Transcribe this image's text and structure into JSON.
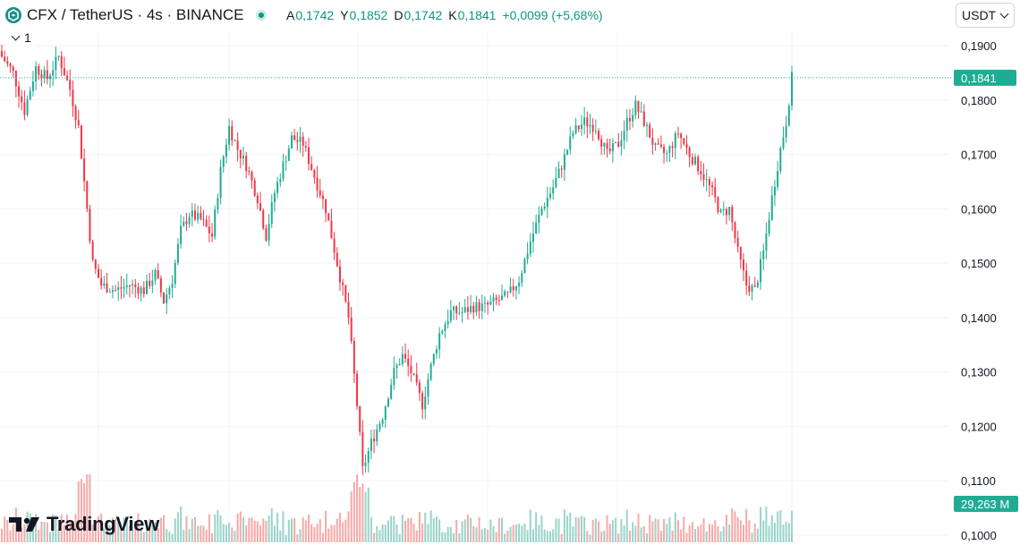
{
  "header": {
    "symbol": "CFX / TetherUS · 4s · BINANCE",
    "symbol_icon": "cfx-logo-icon",
    "ohlc": [
      {
        "key": "A",
        "value": "0,1742"
      },
      {
        "key": "Y",
        "value": "0,1852"
      },
      {
        "key": "D",
        "value": "0,1742"
      },
      {
        "key": "K",
        "value": "0,1841"
      }
    ],
    "change": "+0,0099 (+5,68%)",
    "collapse_count": "1",
    "currency": "USDT"
  },
  "brand": {
    "name": "TradingView",
    "icon": "tradingview-logo-icon"
  },
  "colors": {
    "up": "#22ab94",
    "down": "#f23645",
    "up_vol": "#9ad4c9",
    "down_vol": "#f7a9a7",
    "grid": "#f0f3fa"
  },
  "chart_data": {
    "type": "candlestick",
    "y_axis": {
      "range": [
        0.1,
        0.195
      ],
      "ticks": [
        "0,1900",
        "0,1800",
        "0,1700",
        "0,1600",
        "0,1500",
        "0,1400",
        "0,1300",
        "0,1200",
        "0,1100",
        "0,1000"
      ],
      "tick_values": [
        0.19,
        0.18,
        0.17,
        0.16,
        0.15,
        0.14,
        0.13,
        0.12,
        0.11,
        0.1
      ]
    },
    "last_price": {
      "value": 0.1841,
      "label": "0,1841"
    },
    "volume_label": "29,263 M",
    "grid": true,
    "anchors": [
      [
        0,
        0.188
      ],
      [
        4,
        0.185
      ],
      [
        8,
        0.178
      ],
      [
        12,
        0.186
      ],
      [
        16,
        0.184
      ],
      [
        20,
        0.188
      ],
      [
        24,
        0.182
      ],
      [
        27,
        0.175
      ],
      [
        30,
        0.16
      ],
      [
        32,
        0.15
      ],
      [
        35,
        0.146
      ],
      [
        40,
        0.145
      ],
      [
        45,
        0.146
      ],
      [
        50,
        0.145
      ],
      [
        54,
        0.148
      ],
      [
        57,
        0.143
      ],
      [
        60,
        0.147
      ],
      [
        63,
        0.156
      ],
      [
        66,
        0.159
      ],
      [
        70,
        0.158
      ],
      [
        74,
        0.155
      ],
      [
        77,
        0.167
      ],
      [
        80,
        0.175
      ],
      [
        83,
        0.171
      ],
      [
        86,
        0.168
      ],
      [
        90,
        0.162
      ],
      [
        93,
        0.155
      ],
      [
        96,
        0.163
      ],
      [
        99,
        0.168
      ],
      [
        102,
        0.173
      ],
      [
        106,
        0.172
      ],
      [
        110,
        0.166
      ],
      [
        114,
        0.16
      ],
      [
        118,
        0.15
      ],
      [
        122,
        0.14
      ],
      [
        125,
        0.124
      ],
      [
        127,
        0.112
      ],
      [
        130,
        0.117
      ],
      [
        134,
        0.122
      ],
      [
        138,
        0.13
      ],
      [
        141,
        0.133
      ],
      [
        144,
        0.13
      ],
      [
        148,
        0.124
      ],
      [
        151,
        0.131
      ],
      [
        154,
        0.137
      ],
      [
        158,
        0.141
      ],
      [
        162,
        0.141
      ],
      [
        166,
        0.142
      ],
      [
        170,
        0.142
      ],
      [
        174,
        0.143
      ],
      [
        178,
        0.144
      ],
      [
        182,
        0.147
      ],
      [
        186,
        0.154
      ],
      [
        190,
        0.16
      ],
      [
        194,
        0.164
      ],
      [
        197,
        0.168
      ],
      [
        201,
        0.174
      ],
      [
        205,
        0.176
      ],
      [
        209,
        0.175
      ],
      [
        213,
        0.17
      ],
      [
        217,
        0.172
      ],
      [
        220,
        0.176
      ],
      [
        223,
        0.179
      ],
      [
        226,
        0.176
      ],
      [
        230,
        0.171
      ],
      [
        234,
        0.17
      ],
      [
        238,
        0.174
      ],
      [
        242,
        0.17
      ],
      [
        246,
        0.167
      ],
      [
        250,
        0.163
      ],
      [
        253,
        0.159
      ],
      [
        256,
        0.16
      ],
      [
        259,
        0.152
      ],
      [
        262,
        0.146
      ],
      [
        265,
        0.145
      ],
      [
        268,
        0.152
      ],
      [
        271,
        0.162
      ],
      [
        274,
        0.171
      ],
      [
        276,
        0.176
      ],
      [
        278,
        0.1841
      ]
    ]
  }
}
